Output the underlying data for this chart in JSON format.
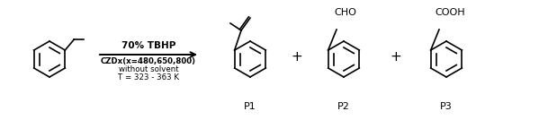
{
  "bg_color": "#ffffff",
  "fig_width": 6.19,
  "fig_height": 1.34,
  "dpi": 100,
  "arrow_text_line1": "70% TBHP",
  "arrow_text_line2": "CZDx(x=480,650,800)",
  "arrow_text_line3": "without solvent",
  "arrow_text_line4": "T = 323 - 363 K",
  "label_p1": "P1",
  "label_p2": "P2",
  "label_p3": "P3",
  "plus_sign": "+",
  "text_color": "#000000",
  "line_color": "#000000"
}
